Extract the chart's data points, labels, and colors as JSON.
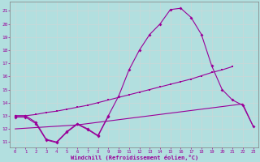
{
  "background_color": "#b2dfdf",
  "line_color": "#990099",
  "grid_color": "#d0d0d0",
  "xlabel": "Windchill (Refroidissement éolien,°C)",
  "xtick_labels": [
    "0",
    "1",
    "2",
    "3",
    "4",
    "5",
    "6",
    "7",
    "8",
    "9",
    "10",
    "11",
    "12",
    "13",
    "14",
    "15",
    "16",
    "17",
    "18",
    "19",
    "20",
    "21",
    "22",
    "23"
  ],
  "ytick_vals": [
    11,
    12,
    13,
    14,
    15,
    16,
    17,
    18,
    19,
    20,
    21
  ],
  "ylim": [
    10.6,
    21.7
  ],
  "xlim": [
    -0.5,
    23.5
  ],
  "main_x": [
    0,
    1,
    2,
    3,
    4,
    5,
    6,
    7,
    8,
    9,
    10,
    11,
    12,
    13,
    14,
    15,
    16,
    17,
    18,
    19,
    20,
    21,
    22,
    23
  ],
  "main_y": [
    13.0,
    13.0,
    12.5,
    11.2,
    11.0,
    11.8,
    12.4,
    12.0,
    11.5,
    13.0,
    14.5,
    16.5,
    18.0,
    19.2,
    20.0,
    21.1,
    21.2,
    20.5,
    19.2,
    16.8,
    15.0,
    14.2,
    13.8,
    12.2
  ],
  "upper_x": [
    0,
    1,
    2,
    3,
    4,
    5,
    6,
    7,
    8,
    9,
    10,
    11,
    12,
    13,
    14,
    15,
    16,
    17,
    18,
    19,
    20,
    21
  ],
  "upper_y": [
    13.0,
    13.0,
    13.1,
    13.25,
    13.35,
    13.5,
    13.65,
    13.8,
    14.0,
    14.2,
    14.4,
    14.6,
    14.8,
    15.0,
    15.2,
    15.4,
    15.6,
    15.8,
    16.05,
    16.3,
    16.5,
    16.75
  ],
  "jagged_x": [
    0,
    1,
    2,
    3,
    4,
    5,
    6,
    7,
    8,
    9
  ],
  "jagged_y": [
    12.9,
    12.9,
    12.4,
    11.15,
    10.95,
    11.75,
    12.35,
    11.95,
    11.45,
    12.95
  ],
  "lower_x": [
    0,
    1,
    2,
    3,
    4,
    5,
    6,
    7,
    8,
    9,
    10,
    11,
    12,
    13,
    14,
    15,
    16,
    17,
    18,
    19,
    20,
    21,
    22,
    23
  ],
  "lower_y": [
    12.0,
    12.05,
    12.1,
    12.15,
    12.2,
    12.25,
    12.3,
    12.4,
    12.5,
    12.6,
    12.7,
    12.8,
    12.9,
    13.0,
    13.1,
    13.2,
    13.3,
    13.4,
    13.5,
    13.6,
    13.7,
    13.8,
    13.9,
    12.2
  ]
}
